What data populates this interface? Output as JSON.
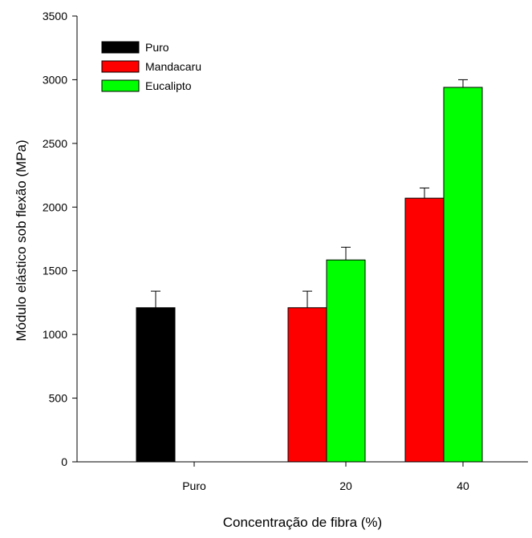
{
  "chart_data": {
    "type": "bar",
    "xlabel": "Concentração de fibra (%)",
    "ylabel": "Módulo elástico sob flexão (MPa)",
    "ylim": [
      0,
      3500
    ],
    "yticks": [
      0,
      500,
      1000,
      1500,
      2000,
      2500,
      3000,
      3500
    ],
    "categories": [
      "Puro",
      "20",
      "40"
    ],
    "series": [
      {
        "name": "Puro",
        "color": "#000000",
        "values": [
          1210,
          null,
          null
        ],
        "errors": [
          130,
          null,
          null
        ]
      },
      {
        "name": "Mandacaru",
        "color": "#ff0000",
        "values": [
          null,
          1210,
          2070
        ],
        "errors": [
          null,
          130,
          80
        ]
      },
      {
        "name": "Eucalipto",
        "color": "#00ff00",
        "values": [
          null,
          1585,
          2940
        ],
        "errors": [
          null,
          100,
          60
        ]
      }
    ],
    "legend_position": "top-left",
    "grid": false
  }
}
